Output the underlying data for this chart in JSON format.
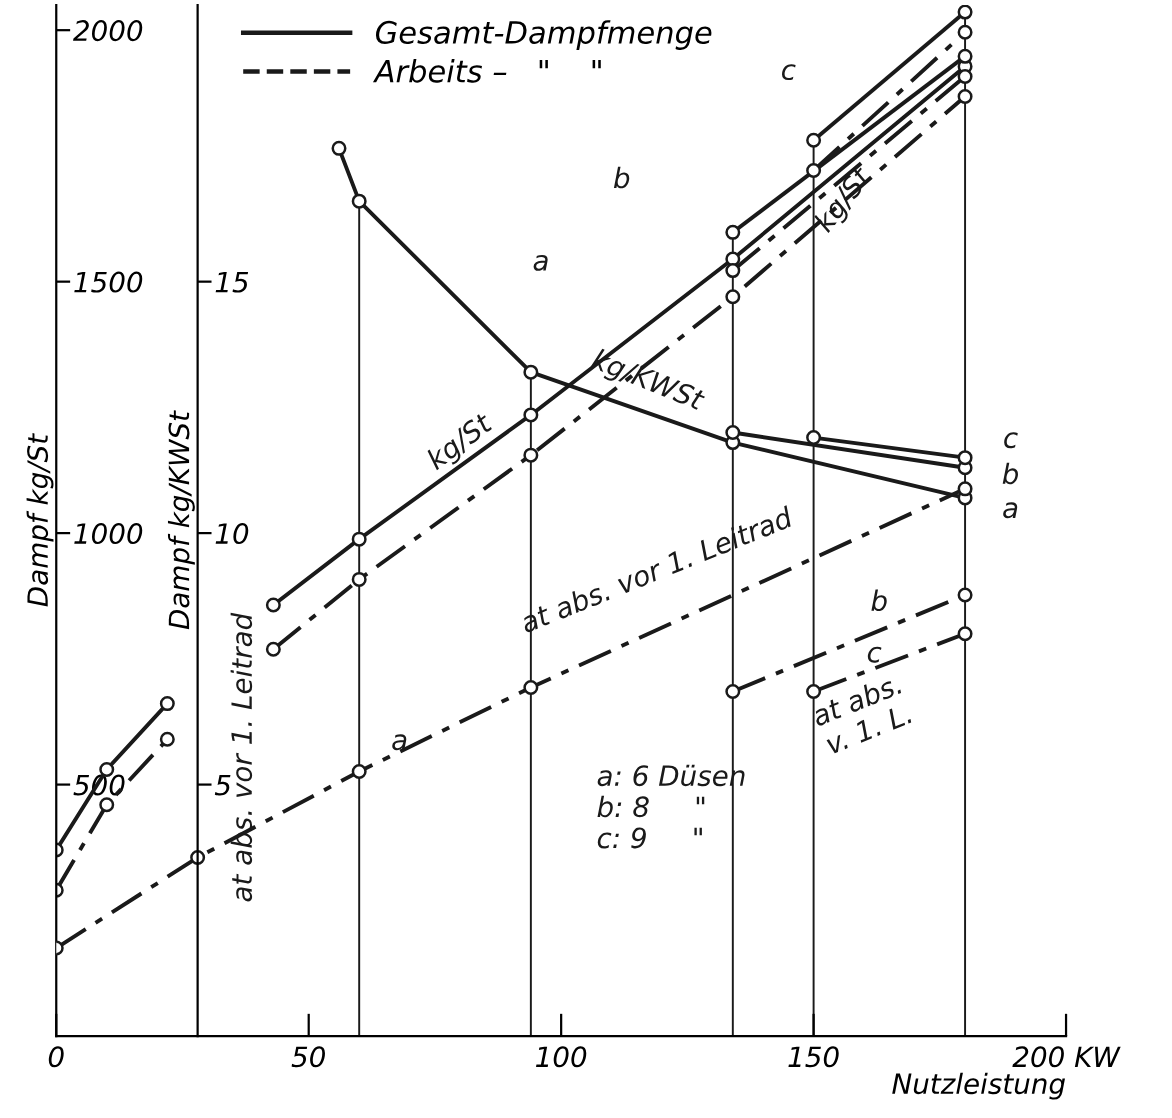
{
  "chart_data": {
    "type": "line",
    "xlabel": "Nutzleistung",
    "ylabel": "Dampf kg/St",
    "y2label": "Dampf kg/KWSt",
    "xlim": [
      0,
      200
    ],
    "xticks": [
      0,
      50,
      100,
      150,
      {
        "value": 200,
        "label": "200 KW"
      }
    ],
    "ylim": [
      0,
      2050
    ],
    "yticks": [
      500,
      1000,
      1500,
      2000
    ],
    "y2lim": [
      0,
      20.5
    ],
    "y2ticks": [
      5,
      10,
      15
    ],
    "grid": false,
    "legend": "top",
    "marker": "circle",
    "series": [
      {
        "name": "Gesamt-Dampfmenge",
        "color": "#1a1a1a",
        "line_style": "solid",
        "x": [
          0,
          10,
          22,
          32,
          43,
          60,
          94,
          134,
          180
        ],
        "values": [
          370,
          530,
          661,
          null,
          857,
          988,
          1235,
          1545,
          1928
        ]
      },
      {
        "name": "Arbeits –   \"    \"",
        "color": "#1a1a1a",
        "line_style": "dashed",
        "x": [
          0,
          10,
          22,
          32,
          43,
          60,
          94,
          134,
          180
        ],
        "values": [
          290,
          460,
          590,
          null,
          769,
          908,
          1155,
          1470,
          1868
        ]
      },
      {
        "color": "#1a1a1a",
        "line_style": "solid",
        "x": [
          134,
          180
        ],
        "values": [
          1598,
          1948
        ]
      },
      {
        "color": "#1a1a1a",
        "line_style": "dashed",
        "x": [
          134,
          180
        ],
        "values": [
          1522,
          1908
        ]
      },
      {
        "color": "#1a1a1a",
        "line_style": "solid",
        "x": [
          150,
          180
        ],
        "values": [
          1781,
          2036
        ]
      },
      {
        "color": "#1a1a1a",
        "line_style": "dashed",
        "x": [
          150,
          180
        ],
        "values": [
          1721,
          1996
        ]
      },
      {
        "color": "#1a1a1a",
        "line_style": "solid",
        "axis": "y2",
        "x": [
          56,
          60,
          94,
          134,
          180
        ],
        "values": [
          17.65,
          16.6,
          13.2,
          11.8,
          10.7
        ]
      },
      {
        "color": "#1a1a1a",
        "line_style": "solid",
        "axis": "y2",
        "x": [
          134,
          180
        ],
        "values": [
          12.0,
          11.3
        ]
      },
      {
        "color": "#1a1a1a",
        "line_style": "solid",
        "axis": "y2",
        "x": [
          150,
          180
        ],
        "values": [
          11.9,
          11.5
        ]
      },
      {
        "color": "#1a1a1a",
        "line_style": "dashed",
        "axis": "y2",
        "x": [
          0,
          28,
          60,
          94,
          180
        ],
        "values": [
          1.75,
          3.55,
          5.26,
          6.93,
          10.88
        ]
      },
      {
        "color": "#1a1a1a",
        "line_style": "dashed",
        "axis": "y2",
        "x": [
          134,
          180
        ],
        "values": [
          6.85,
          8.77
        ]
      },
      {
        "color": "#1a1a1a",
        "line_style": "dashed",
        "axis": "y2",
        "x": [
          150,
          180
        ],
        "values": [
          6.85,
          8.0
        ]
      }
    ],
    "ref_lines": [
      {
        "axis": "x",
        "value": 60,
        "color": "#1a1a1a"
      },
      {
        "axis": "x",
        "value": 94,
        "color": "#1a1a1a"
      },
      {
        "axis": "x",
        "value": 134,
        "color": "#1a1a1a"
      },
      {
        "axis": "x",
        "value": 150,
        "color": "#1a1a1a"
      },
      {
        "axis": "x",
        "value": 180,
        "color": "#1a1a1a"
      }
    ],
    "annotations": [
      "at abs. vor 1. Leitrad",
      "a: 6 Düsen\nb: 8     \"\nc: 9     \"",
      "kg/St",
      "kg/St",
      "kg/KWSt",
      "at abs. vor 1. Leitrad",
      "at abs.\nv. 1. L.",
      "a",
      "b",
      "c",
      "c",
      "b",
      "a",
      "c",
      "b",
      "a"
    ]
  }
}
